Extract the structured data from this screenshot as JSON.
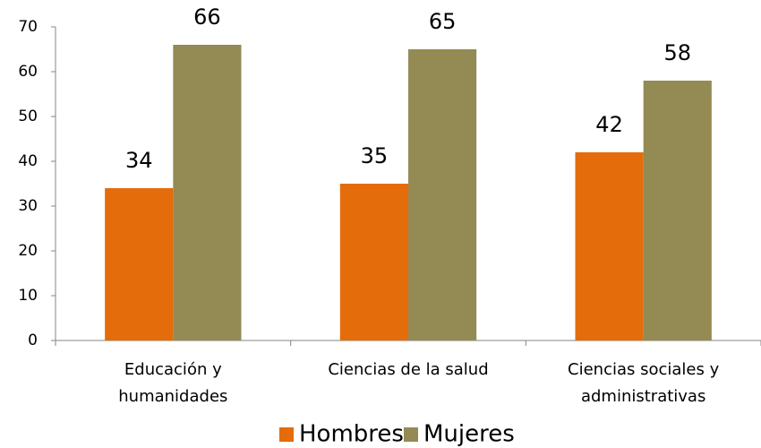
{
  "chart_data": {
    "type": "bar",
    "categories": [
      "Educación y humanidades",
      "Ciencias de la salud",
      "Ciencias sociales y administrativas"
    ],
    "series": [
      {
        "name": "Hombres",
        "color": "#e46c0a",
        "values": [
          34,
          35,
          42
        ]
      },
      {
        "name": "Mujeres",
        "color": "#948a54",
        "values": [
          66,
          65,
          58
        ]
      }
    ],
    "ylim": [
      0,
      70
    ],
    "yticks": [
      0,
      10,
      20,
      30,
      40,
      50,
      60,
      70
    ],
    "grid": false,
    "legend": "bottom"
  }
}
